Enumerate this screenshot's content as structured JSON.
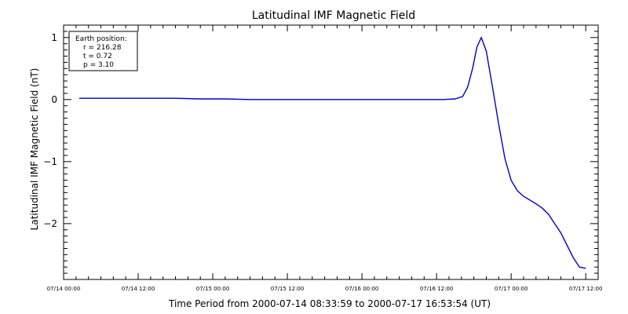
{
  "chart_data": {
    "type": "line",
    "title": "Latitudinal IMF Magnetic Field",
    "xlabel": "Time Period from 2000-07-14 08:33:59 to 2000-07-17 16:53:54 (UT)",
    "ylabel": "Latitudinal IMF Magnetic Field (nT)",
    "x_units": "hours since 07/14 00:00",
    "xlim": [
      0,
      86
    ],
    "ylim": [
      -2.9,
      1.2
    ],
    "x_ticks": [
      {
        "x": 0,
        "label": "07/14 00:00"
      },
      {
        "x": 12,
        "label": "07/14 12:00"
      },
      {
        "x": 24,
        "label": "07/15 00:00"
      },
      {
        "x": 36,
        "label": "07/15 12:00"
      },
      {
        "x": 48,
        "label": "07/16 00:00"
      },
      {
        "x": 60,
        "label": "07/16 12:00"
      },
      {
        "x": 72,
        "label": "07/17 00:00"
      },
      {
        "x": 84,
        "label": "07/17 12:00"
      }
    ],
    "y_ticks": [
      {
        "y": 1,
        "label": "1"
      },
      {
        "y": 0,
        "label": "0"
      },
      {
        "y": -1,
        "label": "−1"
      },
      {
        "y": -2,
        "label": "−2"
      }
    ],
    "series": [
      {
        "color": "#0000cc",
        "points": [
          [
            2.5,
            0.02
          ],
          [
            6,
            0.02
          ],
          [
            10,
            0.02
          ],
          [
            14,
            0.02
          ],
          [
            18,
            0.02
          ],
          [
            22,
            0.01
          ],
          [
            26,
            0.01
          ],
          [
            30,
            0.0
          ],
          [
            34,
            0.0
          ],
          [
            38,
            0.0
          ],
          [
            42,
            0.0
          ],
          [
            46,
            0.0
          ],
          [
            50,
            0.0
          ],
          [
            54,
            0.0
          ],
          [
            58,
            0.0
          ],
          [
            61,
            0.0
          ],
          [
            63,
            0.01
          ],
          [
            64.2,
            0.05
          ],
          [
            65,
            0.2
          ],
          [
            65.8,
            0.5
          ],
          [
            66.5,
            0.85
          ],
          [
            67.2,
            1.0
          ],
          [
            68,
            0.78
          ],
          [
            69,
            0.2
          ],
          [
            70,
            -0.4
          ],
          [
            71,
            -0.95
          ],
          [
            72,
            -1.3
          ],
          [
            73,
            -1.47
          ],
          [
            74,
            -1.56
          ],
          [
            75,
            -1.62
          ],
          [
            76,
            -1.68
          ],
          [
            77,
            -1.75
          ],
          [
            78,
            -1.85
          ],
          [
            79,
            -2.0
          ],
          [
            80,
            -2.15
          ],
          [
            81,
            -2.35
          ],
          [
            82,
            -2.55
          ],
          [
            83,
            -2.7
          ],
          [
            84,
            -2.72
          ]
        ]
      }
    ],
    "annotations": {
      "legend_box": {
        "position": "top-left",
        "lines": [
          "Earth position:",
          "r = 216.28",
          "t = 0.72",
          "p = 3.10"
        ]
      }
    }
  }
}
